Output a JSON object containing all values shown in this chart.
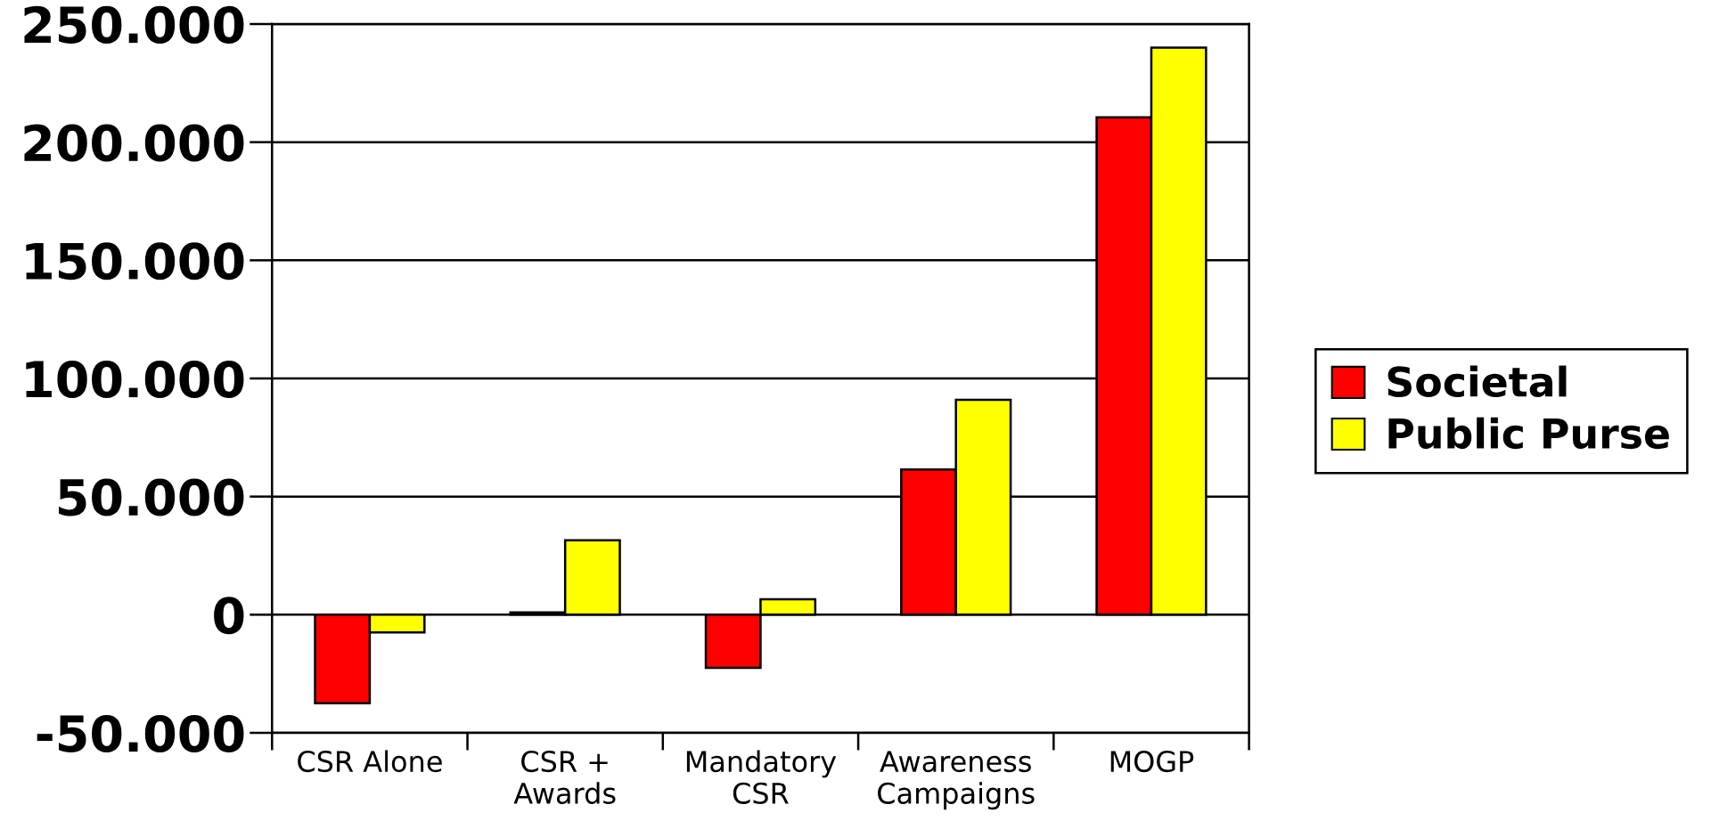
{
  "chart_data": {
    "type": "bar",
    "categories": [
      "CSR Alone",
      "CSR +\nAwards",
      "Mandatory\nCSR",
      "Awareness\nCampaigns",
      "MOGP"
    ],
    "series": [
      {
        "name": "Societal",
        "color": "#ff0000",
        "values": [
          -37500,
          1000,
          -22500,
          61500,
          210500
        ]
      },
      {
        "name": "Public Purse",
        "color": "#ffff00",
        "values": [
          -7500,
          31500,
          6500,
          91000,
          240000
        ]
      }
    ],
    "ylim": [
      -50000,
      250000
    ],
    "yticks": [
      {
        "value": -50000,
        "label": "-50.000"
      },
      0,
      {
        "value": 50000,
        "label": "50.000"
      },
      {
        "value": 100000,
        "label": "100.000"
      },
      {
        "value": 150000,
        "label": "150.000"
      },
      {
        "value": 200000,
        "label": "200.000"
      },
      {
        "value": 250000,
        "label": "250.000"
      }
    ],
    "grid": "y",
    "legend": "right"
  }
}
